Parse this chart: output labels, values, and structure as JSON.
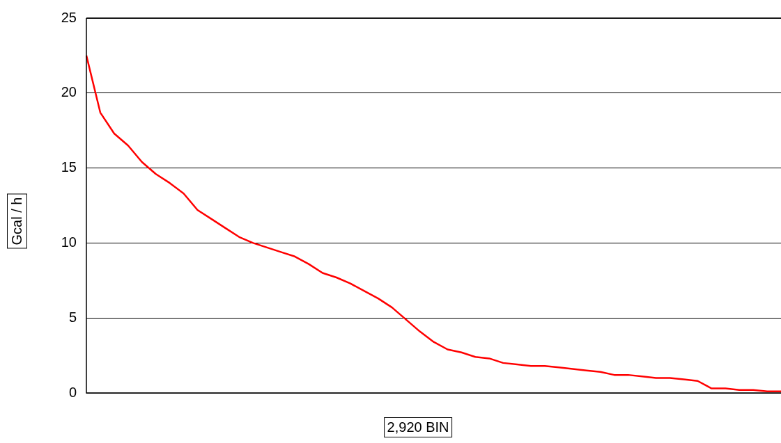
{
  "chart_data": {
    "type": "line",
    "xlabel": "2,920 BIN",
    "ylabel": "Gcal / h",
    "categories": [
      null,
      null,
      null,
      null,
      null,
      null,
      null,
      null,
      null,
      null,
      null,
      null,
      null,
      null,
      null,
      null,
      null,
      null,
      null,
      null,
      null,
      null,
      null,
      null,
      null,
      null,
      null,
      null,
      null,
      null,
      null,
      null,
      null,
      null,
      null,
      null,
      null,
      null,
      null,
      null,
      null,
      null,
      null,
      null,
      null,
      null,
      null,
      null,
      null,
      null,
      null
    ],
    "series": [
      {
        "color": "#ff0000",
        "values": [
          22.5,
          18.7,
          17.3,
          16.5,
          15.4,
          14.6,
          14.0,
          13.3,
          12.2,
          11.6,
          11.0,
          10.4,
          10.0,
          9.7,
          9.4,
          9.1,
          8.6,
          8.0,
          7.7,
          7.3,
          6.8,
          6.3,
          5.7,
          4.9,
          4.1,
          3.4,
          2.9,
          2.7,
          2.4,
          2.3,
          2.0,
          1.9,
          1.8,
          1.8,
          1.7,
          1.6,
          1.5,
          1.4,
          1.2,
          1.2,
          1.1,
          1.0,
          1.0,
          0.9,
          0.8,
          0.3,
          0.3,
          0.2,
          0.2,
          0.1,
          0.1
        ]
      }
    ],
    "ylim": [
      0,
      25
    ],
    "yticks": [
      0,
      5,
      10,
      15,
      20,
      25
    ],
    "grid": "y",
    "tick_labels": "y",
    "marker": "none",
    "line_style": "solid"
  }
}
